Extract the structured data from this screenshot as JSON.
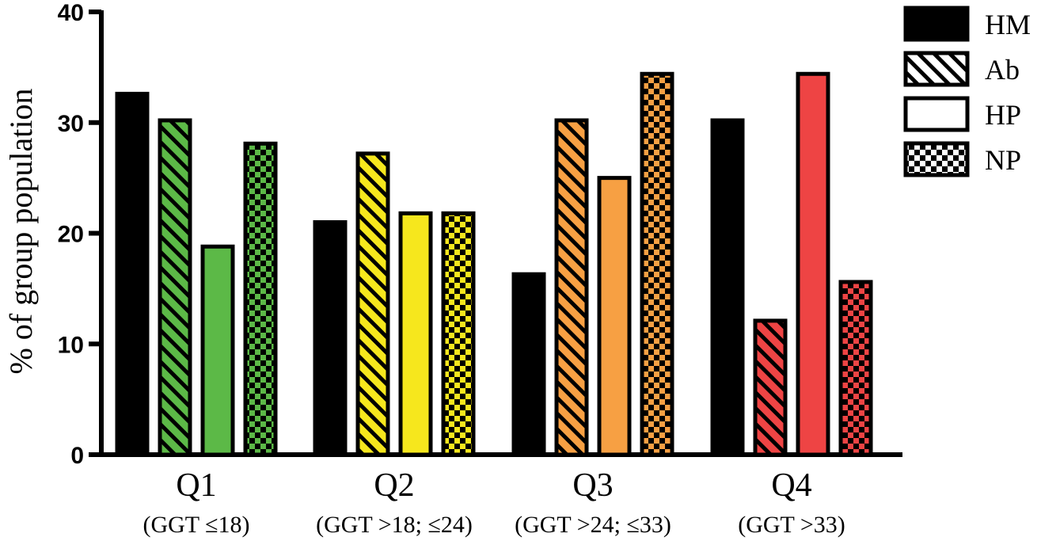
{
  "chart_data": {
    "type": "bar",
    "ylabel": "% of group population",
    "xlabel": "",
    "ylim": [
      0,
      40
    ],
    "yticks": [
      0,
      10,
      20,
      30,
      40
    ],
    "categories": [
      "Q1",
      "Q2",
      "Q3",
      "Q4"
    ],
    "category_sublabels": [
      "(GGT ≤18)",
      "(GGT >18; ≤24)",
      "(GGT >24; ≤33)",
      "(GGT >33)"
    ],
    "category_colors": [
      "#5cb947",
      "#f6e71d",
      "#f7a043",
      "#ee4444"
    ],
    "legend_position": "right",
    "series": [
      {
        "name": "HM",
        "pattern": "solid-black",
        "values": [
          32.6,
          21.0,
          16.3,
          30.2
        ]
      },
      {
        "name": "Ab",
        "pattern": "diagonal-hatch",
        "values": [
          30.2,
          27.2,
          30.2,
          12.1
        ]
      },
      {
        "name": "HP",
        "pattern": "solid-color",
        "values": [
          18.8,
          21.8,
          25.0,
          34.4
        ]
      },
      {
        "name": "NP",
        "pattern": "checker",
        "values": [
          28.1,
          21.8,
          34.4,
          15.6
        ]
      }
    ]
  }
}
